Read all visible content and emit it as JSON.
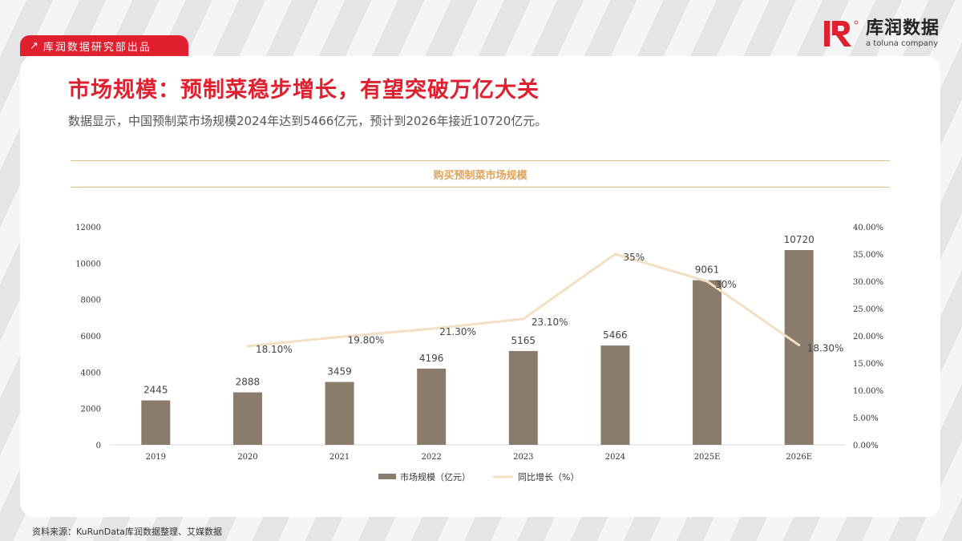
{
  "header": {
    "tag_label": "库润数据研究部出品",
    "logo_name": "库润数据",
    "logo_tagline": "a toluna company"
  },
  "page": {
    "title": "市场规模：预制菜稳步增长，有望突破万亿大关",
    "subtitle": "数据显示，中国预制菜市场规模2024年达到5466亿元，预计到2026年接近10720亿元。"
  },
  "source": "资料来源：KuRunData库润数据整理、艾媒数据",
  "colors": {
    "brand_red": "#e0202e",
    "bar": "#8a7b6c",
    "line": "#f2dfc4",
    "band_border": "#e2c08b",
    "chart_title": "#e2a35b"
  },
  "chart_data": {
    "type": "bar",
    "title": "购买预制菜市场规模",
    "categories": [
      "2019",
      "2020",
      "2021",
      "2022",
      "2023",
      "2024",
      "2025E",
      "2026E"
    ],
    "series": [
      {
        "name": "市场规模（亿元）",
        "type": "bar",
        "axis": "left",
        "values": [
          2445,
          2888,
          3459,
          4196,
          5165,
          5466,
          9061,
          10720
        ],
        "labels": [
          "2445",
          "2888",
          "3459",
          "4196",
          "5165",
          "5466",
          "9061",
          "10720"
        ]
      },
      {
        "name": "同比增长（%）",
        "type": "line",
        "axis": "right",
        "values": [
          null,
          18.1,
          19.8,
          21.3,
          23.1,
          35,
          30,
          18.3
        ],
        "labels": [
          "",
          "18.10%",
          "19.80%",
          "21.30%",
          "23.10%",
          "35%",
          "30%",
          "18.30%"
        ]
      }
    ],
    "y_left": {
      "min": 0,
      "max": 12000,
      "ticks": [
        "0",
        "2000",
        "4000",
        "6000",
        "8000",
        "10000",
        "12000"
      ]
    },
    "y_right": {
      "min": 0,
      "max": 40,
      "ticks": [
        "0.00%",
        "5.00%",
        "10.00%",
        "15.00%",
        "20.00%",
        "25.00%",
        "30.00%",
        "35.00%",
        "40.00%"
      ]
    },
    "legend_position": "bottom"
  }
}
